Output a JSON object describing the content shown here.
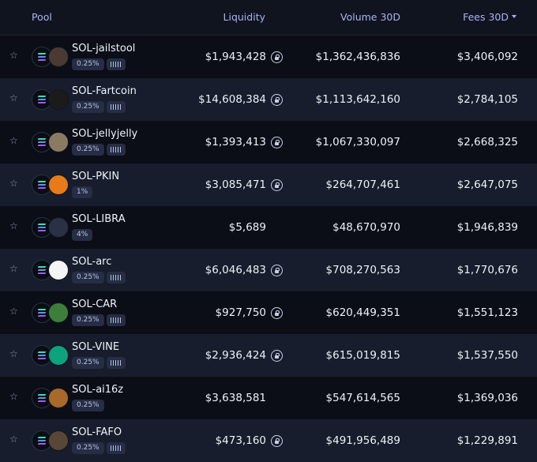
{
  "header": {
    "pool": "Pool",
    "liquidity": "Liquidity",
    "volume": "Volume 30D",
    "fees": "Fees 30D"
  },
  "rows": [
    {
      "pair": "SOL-jailstool",
      "fee": "0.25%",
      "kamino": true,
      "liquidity": "$1,943,428",
      "locked": true,
      "volume": "$1,362,436,836",
      "fees": "$3,406,092",
      "token_color": "#4a3a32"
    },
    {
      "pair": "SOL-Fartcoin",
      "fee": "0.25%",
      "kamino": true,
      "liquidity": "$14,608,384",
      "locked": true,
      "volume": "$1,113,642,160",
      "fees": "$2,784,105",
      "token_color": "#1b1b1b"
    },
    {
      "pair": "SOL-jellyjelly",
      "fee": "0.25%",
      "kamino": true,
      "liquidity": "$1,393,413",
      "locked": true,
      "volume": "$1,067,330,097",
      "fees": "$2,668,325",
      "token_color": "#8b7a62"
    },
    {
      "pair": "SOL-PKIN",
      "fee": "1%",
      "kamino": false,
      "liquidity": "$3,085,471",
      "locked": true,
      "volume": "$264,707,461",
      "fees": "$2,647,075",
      "token_color": "#e77b19"
    },
    {
      "pair": "SOL-LIBRA",
      "fee": "4%",
      "kamino": false,
      "liquidity": "$5,689",
      "locked": false,
      "volume": "$48,670,970",
      "fees": "$1,946,839",
      "token_color": "#2a3145"
    },
    {
      "pair": "SOL-arc",
      "fee": "0.25%",
      "kamino": true,
      "liquidity": "$6,046,483",
      "locked": true,
      "volume": "$708,270,563",
      "fees": "$1,770,676",
      "token_color": "#f4f4f4"
    },
    {
      "pair": "SOL-CAR",
      "fee": "0.25%",
      "kamino": true,
      "liquidity": "$927,750",
      "locked": true,
      "volume": "$620,449,351",
      "fees": "$1,551,123",
      "token_color": "#3d7f3a"
    },
    {
      "pair": "SOL-VINE",
      "fee": "0.25%",
      "kamino": true,
      "liquidity": "$2,936,424",
      "locked": true,
      "volume": "$615,019,815",
      "fees": "$1,537,550",
      "token_color": "#0da37f"
    },
    {
      "pair": "SOL-ai16z",
      "fee": "0.25%",
      "kamino": false,
      "liquidity": "$3,638,581",
      "locked": false,
      "volume": "$547,614,565",
      "fees": "$1,369,036",
      "token_color": "#a86a2a"
    },
    {
      "pair": "SOL-FAFO",
      "fee": "0.25%",
      "kamino": true,
      "liquidity": "$473,160",
      "locked": true,
      "volume": "$491,956,489",
      "fees": "$1,229,891",
      "token_color": "#5a4636"
    }
  ],
  "icons": {
    "star": "star-icon",
    "sol": "solana-icon",
    "lock": "lock-icon",
    "kamino": "kamino-icon",
    "sort": "sort-desc-icon"
  }
}
